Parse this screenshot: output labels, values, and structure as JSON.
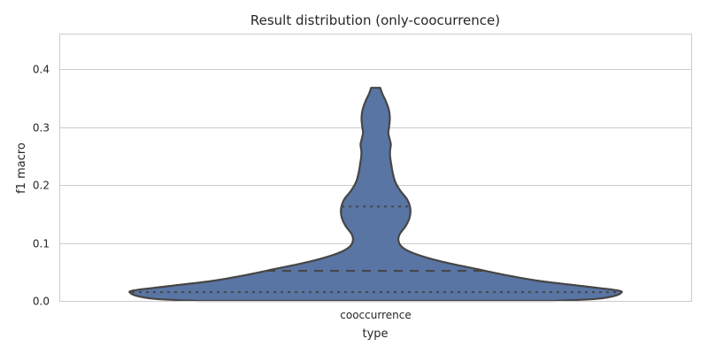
{
  "chart_data": {
    "type": "violin",
    "title": "Result distribution (only-coocurrence)",
    "xlabel": "type",
    "ylabel": "f1 macro",
    "categories": [
      "cooccurrence"
    ],
    "ylim": [
      0,
      0.46
    ],
    "yticks": [
      0.0,
      0.1,
      0.2,
      0.3,
      0.4
    ],
    "ytick_labels": [
      "0.0",
      "0.1",
      "0.2",
      "0.3",
      "0.4"
    ],
    "grid": true,
    "color": "#5975a4",
    "series": [
      {
        "category": "cooccurrence",
        "min": 0.0,
        "max": 0.368,
        "quartiles": {
          "q1": 0.015,
          "median": 0.052,
          "q3": 0.163
        },
        "density_profile": [
          {
            "y": 0.0,
            "w": 0.7
          },
          {
            "y": 0.003,
            "w": 0.86
          },
          {
            "y": 0.007,
            "w": 0.93
          },
          {
            "y": 0.013,
            "w": 0.97
          },
          {
            "y": 0.018,
            "w": 0.96
          },
          {
            "y": 0.025,
            "w": 0.83
          },
          {
            "y": 0.035,
            "w": 0.64
          },
          {
            "y": 0.045,
            "w": 0.51
          },
          {
            "y": 0.055,
            "w": 0.4
          },
          {
            "y": 0.065,
            "w": 0.29
          },
          {
            "y": 0.075,
            "w": 0.2
          },
          {
            "y": 0.085,
            "w": 0.135
          },
          {
            "y": 0.095,
            "w": 0.1
          },
          {
            "y": 0.105,
            "w": 0.09
          },
          {
            "y": 0.115,
            "w": 0.095
          },
          {
            "y": 0.13,
            "w": 0.12
          },
          {
            "y": 0.145,
            "w": 0.135
          },
          {
            "y": 0.16,
            "w": 0.137
          },
          {
            "y": 0.175,
            "w": 0.125
          },
          {
            "y": 0.19,
            "w": 0.098
          },
          {
            "y": 0.205,
            "w": 0.078
          },
          {
            "y": 0.22,
            "w": 0.068
          },
          {
            "y": 0.235,
            "w": 0.062
          },
          {
            "y": 0.25,
            "w": 0.057
          },
          {
            "y": 0.26,
            "w": 0.057
          },
          {
            "y": 0.27,
            "w": 0.06
          },
          {
            "y": 0.28,
            "w": 0.055
          },
          {
            "y": 0.29,
            "w": 0.05
          },
          {
            "y": 0.3,
            "w": 0.053
          },
          {
            "y": 0.315,
            "w": 0.056
          },
          {
            "y": 0.33,
            "w": 0.052
          },
          {
            "y": 0.345,
            "w": 0.04
          },
          {
            "y": 0.358,
            "w": 0.026
          },
          {
            "y": 0.368,
            "w": 0.018
          }
        ]
      }
    ]
  }
}
